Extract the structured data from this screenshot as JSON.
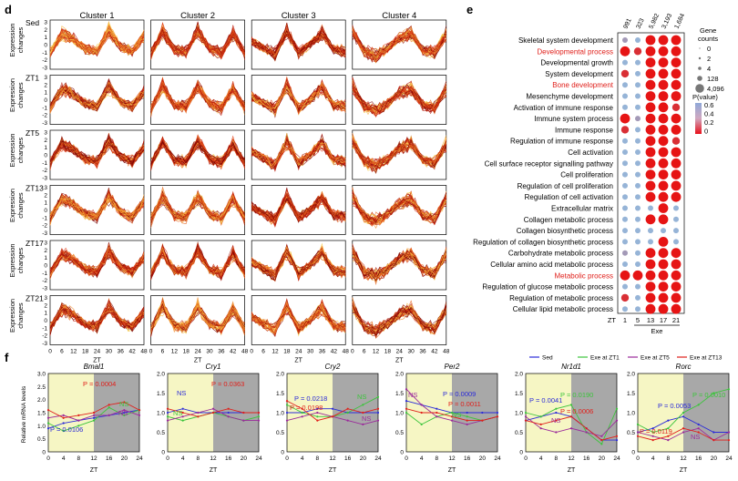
{
  "panel_d": {
    "letter": "d",
    "clusters": [
      "Cluster 1",
      "Cluster 2",
      "Cluster 3",
      "Cluster 4"
    ],
    "rows": [
      "Sed",
      "ZT1",
      "ZT5",
      "ZT13",
      "ZT17",
      "ZT21"
    ],
    "ylabel_line1": "Expression",
    "ylabel_line2": "changes",
    "yticks": [
      "3",
      "2",
      "1",
      "0",
      "-1",
      "-2",
      "-3"
    ],
    "xticks": [
      "0",
      "6",
      "12",
      "18",
      "24",
      "30",
      "36",
      "42",
      "48"
    ],
    "xlabel": "ZT"
  },
  "panel_e": {
    "letter": "e",
    "column_counts": [
      "991",
      "323",
      "5,982",
      "3,193",
      "1,684"
    ],
    "xticks": [
      "1",
      "5",
      "13",
      "17",
      "21"
    ],
    "xprefix": "ZT",
    "xgroup": "Exe",
    "terms": [
      "Skeletal system development",
      "Developmental process",
      "Developmental growth",
      "System development",
      "Bone development",
      "Mesenchyme development",
      "Activation of immune response",
      "Immune system process",
      "Immune response",
      "Regulation of immune response",
      "Cell activation",
      "Cell surface receptor signalling pathway",
      "Cell proliferation",
      "Regulation of cell proliferation",
      "Regulation of cell activation",
      "Extracellular matrix",
      "Collagen metabolic process",
      "Collagen biosynthetic process",
      "Regulation of collagen biosynthetic process",
      "Carbohydrate metabolic process",
      "Cellular amino acid metabolic process",
      "Metabolic process",
      "Regulation of glucose metabolic process",
      "Regulation of metabolic process",
      "Cellular lipid metabolic process"
    ],
    "highlighted_terms": [
      1,
      4,
      21
    ],
    "highlight_color": "#e0201b",
    "legend_size_title_1": "Gene",
    "legend_size_title_2": "counts",
    "legend_sizes": [
      "0",
      "2",
      "4",
      "128",
      "4,096"
    ],
    "legend_p_title": "P(value)",
    "legend_p_ticks": [
      "0.6",
      "0.4",
      "0.2",
      "0"
    ]
  },
  "panel_f": {
    "letter": "f",
    "ylabel": "Relative mRNA levels",
    "xlabel": "ZT",
    "xticks": [
      "0",
      "4",
      "8",
      "12",
      "16",
      "20",
      "24"
    ],
    "legend": [
      {
        "label": "Sed",
        "color": "#2b2bd8"
      },
      {
        "label": "Exe at ZT1",
        "color": "#3cc43c"
      },
      {
        "label": "Exe at ZT5",
        "color": "#9b2a9b"
      },
      {
        "label": "Exe at ZT13",
        "color": "#e0201b"
      }
    ],
    "genes": [
      {
        "name": "Bmal1",
        "yticks": [
          "3.0",
          "2.5",
          "2.0",
          "1.5",
          "1.0",
          "0.5",
          "0"
        ],
        "annotations": [
          {
            "text": "P = 0.0004",
            "color": "#e0201b"
          },
          {
            "text": "NS",
            "color": "#3cc43c"
          },
          {
            "text": "NS",
            "color": "#9b2a9b"
          },
          {
            "text": "P = 0.0106",
            "color": "#2b2bd8"
          }
        ]
      },
      {
        "name": "Cry1",
        "yticks": [
          "2.0",
          "1.5",
          "1.0",
          "0.5",
          "0"
        ],
        "annotations": [
          {
            "text": "NS",
            "color": "#2b2bd8"
          },
          {
            "text": "P = 0.0363",
            "color": "#e0201b"
          },
          {
            "text": "NS",
            "color": "#3cc43c"
          }
        ]
      },
      {
        "name": "Cry2",
        "yticks": [
          "2.0",
          "1.5",
          "1.0",
          "0.5",
          "0"
        ],
        "annotations": [
          {
            "text": "P = 0.0218",
            "color": "#2b2bd8"
          },
          {
            "text": "P = 0.0198",
            "color": "#e0201b"
          },
          {
            "text": "NS",
            "color": "#3cc43c"
          },
          {
            "text": "NS",
            "color": "#9b2a9b"
          }
        ]
      },
      {
        "name": "Per2",
        "yticks": [
          "2.0",
          "1.5",
          "1.0",
          "0.5",
          "0"
        ],
        "annotations": [
          {
            "text": "NS",
            "color": "#9b2a9b"
          },
          {
            "text": "P = 0.0009",
            "color": "#2b2bd8"
          },
          {
            "text": "P = 0.0011",
            "color": "#e0201b"
          },
          {
            "text": "NS",
            "color": "#3cc43c"
          }
        ]
      },
      {
        "name": "Nr1d1",
        "yticks": [
          "2.0",
          "1.5",
          "1.0",
          "0.5",
          "0"
        ],
        "annotations": [
          {
            "text": "P = 0.0041",
            "color": "#2b2bd8"
          },
          {
            "text": "P = 0.0190",
            "color": "#3cc43c"
          },
          {
            "text": "P = 0.0006",
            "color": "#e0201b"
          },
          {
            "text": "NS",
            "color": "#9b2a9b"
          }
        ]
      },
      {
        "name": "Rorc",
        "yticks": [
          "2.0",
          "1.5",
          "1.0",
          "0.5",
          "0"
        ],
        "annotations": [
          {
            "text": "P = 0.0010",
            "color": "#3cc43c"
          },
          {
            "text": "P = 0.0053",
            "color": "#2b2bd8"
          },
          {
            "text": "P = 0.0119",
            "color": "#e0201b"
          },
          {
            "text": "NS",
            "color": "#9b2a9b"
          }
        ]
      }
    ]
  },
  "chart_data": [
    {
      "type": "line",
      "title": "",
      "xlabel": "ZT",
      "ylabel": "Expression changes",
      "xlim": [
        0,
        48
      ],
      "ylim": [
        -3,
        3
      ],
      "clusters": [
        "Cluster 1",
        "Cluster 2",
        "Cluster 3",
        "Cluster 4"
      ],
      "rows": [
        "Sed",
        "ZT1",
        "ZT5",
        "ZT13",
        "ZT17",
        "ZT21"
      ],
      "x": [
        0,
        6,
        12,
        18,
        24,
        30,
        36,
        42,
        48
      ],
      "series": [
        {
          "name": "Cluster 1",
          "values": [
            -1.2,
            1.6,
            0.8,
            -0.6,
            -1.0,
            2.0,
            -0.3,
            -1.0,
            1.2
          ]
        },
        {
          "name": "Cluster 2",
          "values": [
            -1.4,
            2.0,
            -0.8,
            -1.0,
            2.0,
            -0.6,
            -1.2,
            1.6,
            -1.2
          ]
        },
        {
          "name": "Cluster 3",
          "values": [
            0.5,
            -0.5,
            -1.4,
            2.0,
            -1.2,
            0.0,
            1.8,
            -0.8,
            -1.0
          ]
        },
        {
          "name": "Cluster 4",
          "values": [
            2.0,
            -1.0,
            -1.6,
            -0.6,
            1.0,
            1.6,
            -0.8,
            -1.2,
            1.6
          ]
        }
      ]
    },
    {
      "type": "scatter",
      "title": "",
      "columns": [
        "1",
        "5",
        "13",
        "17",
        "21"
      ],
      "column_gene_counts": [
        991,
        323,
        5982,
        3193,
        1684
      ],
      "rows": [
        "Skeletal system development",
        "Developmental process",
        "Developmental growth",
        "System development",
        "Bone development",
        "Mesenchyme development",
        "Activation of immune response",
        "Immune system process",
        "Immune response",
        "Regulation of immune response",
        "Cell activation",
        "Cell surface receptor signalling pathway",
        "Cell proliferation",
        "Regulation of cell proliferation",
        "Regulation of cell activation",
        "Extracellular matrix",
        "Collagen metabolic process",
        "Collagen biosynthetic process",
        "Regulation of collagen biosynthetic process",
        "Carbohydrate metabolic process",
        "Cellular amino acid metabolic process",
        "Metabolic process",
        "Regulation of glucose metabolic process",
        "Regulation of metabolic process",
        "Cellular lipid metabolic process"
      ],
      "p_values": [
        [
          0.5,
          0.6,
          0.0,
          0.0,
          0.0
        ],
        [
          0.0,
          0.1,
          0.0,
          0.0,
          0.0
        ],
        [
          0.6,
          0.6,
          0.0,
          0.0,
          0.0
        ],
        [
          0.1,
          0.6,
          0.0,
          0.0,
          0.0
        ],
        [
          0.6,
          0.6,
          0.0,
          0.0,
          0.0
        ],
        [
          0.6,
          0.6,
          0.0,
          0.0,
          0.0
        ],
        [
          0.6,
          0.6,
          0.0,
          0.0,
          0.1
        ],
        [
          0.0,
          0.5,
          0.0,
          0.0,
          0.0
        ],
        [
          0.1,
          0.6,
          0.0,
          0.0,
          0.0
        ],
        [
          0.6,
          0.6,
          0.0,
          0.0,
          0.1
        ],
        [
          0.6,
          0.6,
          0.0,
          0.0,
          0.0
        ],
        [
          0.6,
          0.6,
          0.0,
          0.0,
          0.0
        ],
        [
          0.6,
          0.6,
          0.0,
          0.0,
          0.0
        ],
        [
          0.6,
          0.6,
          0.0,
          0.0,
          0.0
        ],
        [
          0.6,
          0.6,
          0.0,
          0.0,
          0.0
        ],
        [
          0.6,
          0.6,
          0.6,
          0.0,
          0.6
        ],
        [
          0.6,
          0.6,
          0.0,
          0.0,
          0.6
        ],
        [
          0.6,
          0.6,
          0.6,
          0.6,
          0.6
        ],
        [
          0.6,
          0.6,
          0.6,
          0.0,
          0.6
        ],
        [
          0.5,
          0.6,
          0.0,
          0.0,
          0.0
        ],
        [
          0.6,
          0.6,
          0.0,
          0.0,
          0.0
        ],
        [
          0.0,
          0.0,
          0.0,
          0.0,
          0.0
        ],
        [
          0.6,
          0.6,
          0.0,
          0.0,
          0.0
        ],
        [
          0.1,
          0.6,
          0.0,
          0.0,
          0.0
        ],
        [
          0.6,
          0.6,
          0.0,
          0.0,
          0.0
        ]
      ],
      "legend_gene_counts": [
        0,
        2,
        4,
        128,
        4096
      ]
    },
    {
      "type": "line",
      "title": "",
      "xlabel": "ZT",
      "ylabel": "Relative mRNA levels",
      "x": [
        0,
        4,
        8,
        12,
        16,
        20,
        24
      ],
      "shading": {
        "light": [
          0,
          12
        ],
        "dark": [
          12,
          24
        ]
      },
      "genes": [
        {
          "gene": "Bmal1",
          "ylim": [
            0,
            3.0
          ],
          "series": [
            {
              "name": "Sed",
              "values": [
                0.9,
                1.1,
                1.2,
                1.3,
                1.4,
                1.5,
                1.6
              ]
            },
            {
              "name": "Exe at ZT1",
              "values": [
                1.1,
                0.8,
                1.0,
                1.2,
                1.7,
                1.4,
                1.6
              ]
            },
            {
              "name": "Exe at ZT5",
              "values": [
                1.3,
                1.4,
                1.2,
                1.4,
                1.4,
                1.6,
                1.4
              ]
            },
            {
              "name": "Exe at ZT13",
              "values": [
                1.6,
                1.3,
                1.4,
                1.5,
                1.8,
                1.9,
                1.6
              ]
            }
          ]
        },
        {
          "gene": "Cry1",
          "ylim": [
            0,
            2.0
          ],
          "series": [
            {
              "name": "Sed",
              "values": [
                1.0,
                1.1,
                1.0,
                1.0,
                1.0,
                1.0,
                1.0
              ]
            },
            {
              "name": "Exe at ZT1",
              "values": [
                0.9,
                0.8,
                0.9,
                1.0,
                0.9,
                0.8,
                0.9
              ]
            },
            {
              "name": "Exe at ZT5",
              "values": [
                0.8,
                0.9,
                1.0,
                1.1,
                0.9,
                0.8,
                0.8
              ]
            },
            {
              "name": "Exe at ZT13",
              "values": [
                1.1,
                1.0,
                0.9,
                1.0,
                1.1,
                1.0,
                1.0
              ]
            }
          ]
        },
        {
          "gene": "Cry2",
          "ylim": [
            0,
            2.0
          ],
          "series": [
            {
              "name": "Sed",
              "values": [
                1.0,
                1.0,
                1.1,
                1.1,
                1.0,
                1.0,
                1.0
              ]
            },
            {
              "name": "Exe at ZT1",
              "values": [
                1.2,
                1.0,
                0.9,
                0.9,
                1.0,
                1.2,
                1.4
              ]
            },
            {
              "name": "Exe at ZT5",
              "values": [
                0.8,
                0.9,
                1.0,
                0.9,
                0.8,
                0.7,
                0.8
              ]
            },
            {
              "name": "Exe at ZT13",
              "values": [
                1.3,
                1.1,
                0.8,
                0.9,
                1.1,
                1.0,
                1.1
              ]
            }
          ]
        },
        {
          "gene": "Per2",
          "ylim": [
            0,
            2.0
          ],
          "series": [
            {
              "name": "Sed",
              "values": [
                1.3,
                1.2,
                1.1,
                1.0,
                1.0,
                1.0,
                1.0
              ]
            },
            {
              "name": "Exe at ZT1",
              "values": [
                1.0,
                0.7,
                0.9,
                1.0,
                0.9,
                0.8,
                0.9
              ]
            },
            {
              "name": "Exe at ZT5",
              "values": [
                1.6,
                1.2,
                0.9,
                0.8,
                0.7,
                0.8,
                0.9
              ]
            },
            {
              "name": "Exe at ZT13",
              "values": [
                1.1,
                1.0,
                1.0,
                0.9,
                0.8,
                0.8,
                0.9
              ]
            }
          ]
        },
        {
          "gene": "Nr1d1",
          "ylim": [
            0,
            2.0
          ],
          "series": [
            {
              "name": "Sed",
              "values": [
                0.8,
                0.9,
                1.0,
                0.9,
                0.6,
                0.3,
                0.3
              ]
            },
            {
              "name": "Exe at ZT1",
              "values": [
                1.0,
                0.9,
                1.1,
                1.2,
                0.5,
                0.2,
                1.1
              ]
            },
            {
              "name": "Exe at ZT5",
              "values": [
                0.9,
                0.6,
                0.5,
                0.6,
                0.5,
                0.4,
                0.8
              ]
            },
            {
              "name": "Exe at ZT13",
              "values": [
                0.8,
                0.7,
                0.8,
                0.9,
                0.6,
                0.3,
                0.4
              ]
            }
          ]
        },
        {
          "gene": "Rorc",
          "ylim": [
            0,
            2.0
          ],
          "series": [
            {
              "name": "Sed",
              "values": [
                0.5,
                0.6,
                0.8,
                0.9,
                0.7,
                0.5,
                0.5
              ]
            },
            {
              "name": "Exe at ZT1",
              "values": [
                0.7,
                0.5,
                0.6,
                1.0,
                1.2,
                1.5,
                1.6
              ]
            },
            {
              "name": "Exe at ZT5",
              "values": [
                0.5,
                0.4,
                0.3,
                0.5,
                0.6,
                0.3,
                0.5
              ]
            },
            {
              "name": "Exe at ZT13",
              "values": [
                0.4,
                0.3,
                0.4,
                0.6,
                0.5,
                0.3,
                0.3
              ]
            }
          ]
        }
      ]
    }
  ]
}
